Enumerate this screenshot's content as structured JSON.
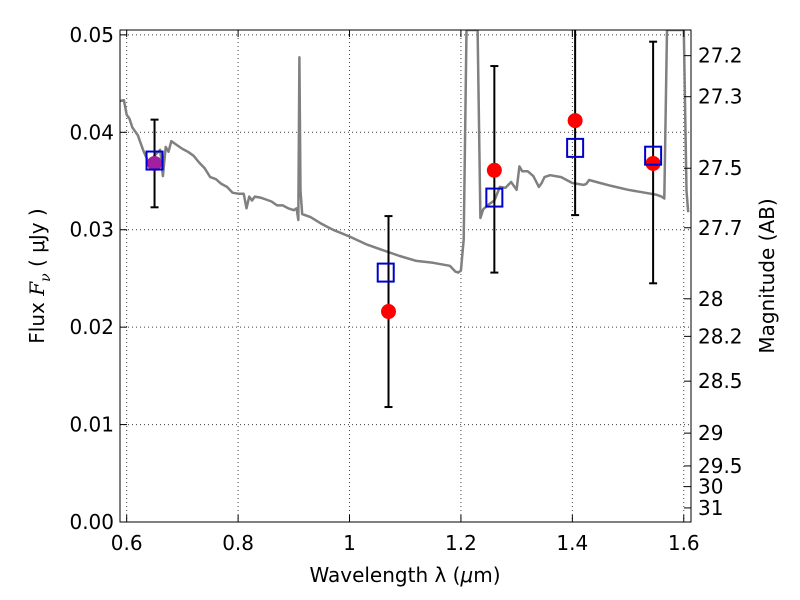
{
  "chart_data": {
    "type": "scatter",
    "xlabel_text": "Wavelength  λ (",
    "xlabel_unit": "μ",
    "xlabel_end": "m)",
    "ylabel_text": "Flux  ",
    "ylabel_math": "F",
    "ylabel_sub": "ν",
    "ylabel_unit": "  ( μJy )",
    "y2label": "Magnitude (AB)",
    "xlim": [
      0.588,
      1.613
    ],
    "ylim": [
      0.0,
      0.0505
    ],
    "x_ticks": [
      0.6,
      0.8,
      1.0,
      1.2,
      1.4,
      1.6
    ],
    "x_tick_labels": [
      "0.6",
      "0.8",
      "1",
      "1.2",
      "1.4",
      "1.6"
    ],
    "y_ticks": [
      0.0,
      0.01,
      0.02,
      0.03,
      0.04,
      0.05
    ],
    "y_tick_labels": [
      "0.00",
      "0.01",
      "0.02",
      "0.03",
      "0.04",
      "0.05"
    ],
    "mag_ticks": [
      27.2,
      27.3,
      27.5,
      27.7,
      28,
      28.2,
      28.5,
      29,
      29.5,
      30,
      31
    ],
    "mag_tick_labels": [
      "27.2",
      "27.3",
      "27.5",
      "27.7",
      "28",
      "28.2",
      "28.5",
      "29",
      "29.5",
      "30",
      "31"
    ],
    "grid": true,
    "colors": {
      "sed": "#808080",
      "observed": "#ff0000",
      "model": "#0000cc",
      "errorbar": "#000000",
      "overlap": "#a020a0"
    },
    "model_spectrum": {
      "x": [
        0.588,
        0.595,
        0.6,
        0.605,
        0.61,
        0.62,
        0.63,
        0.64,
        0.65,
        0.66,
        0.665,
        0.67,
        0.675,
        0.68,
        0.69,
        0.7,
        0.71,
        0.72,
        0.73,
        0.74,
        0.75,
        0.76,
        0.77,
        0.78,
        0.79,
        0.8,
        0.81,
        0.815,
        0.82,
        0.825,
        0.83,
        0.84,
        0.85,
        0.86,
        0.87,
        0.88,
        0.89,
        0.9,
        0.905,
        0.908,
        0.91,
        0.912,
        0.915,
        0.92,
        0.93,
        0.95,
        0.97,
        1.0,
        1.03,
        1.06,
        1.09,
        1.12,
        1.15,
        1.18,
        1.19,
        1.195,
        1.2,
        1.205,
        1.21,
        1.215,
        1.22,
        1.23,
        1.235,
        1.24,
        1.25,
        1.26,
        1.27,
        1.28,
        1.29,
        1.3,
        1.305,
        1.31,
        1.32,
        1.33,
        1.34,
        1.345,
        1.35,
        1.36,
        1.38,
        1.4,
        1.42,
        1.425,
        1.43,
        1.45,
        1.47,
        1.5,
        1.53,
        1.55,
        1.56,
        1.565,
        1.57,
        1.58,
        1.59,
        1.6,
        1.605,
        1.608
      ],
      "y": [
        0.0432,
        0.0433,
        0.0418,
        0.0414,
        0.0405,
        0.0397,
        0.0381,
        0.0368,
        0.0376,
        0.0382,
        0.0355,
        0.0385,
        0.038,
        0.0391,
        0.0387,
        0.0383,
        0.038,
        0.0376,
        0.0369,
        0.0363,
        0.0354,
        0.0352,
        0.0347,
        0.0344,
        0.0338,
        0.0337,
        0.0337,
        0.0322,
        0.0334,
        0.033,
        0.0334,
        0.0333,
        0.0331,
        0.0329,
        0.0325,
        0.0325,
        0.0322,
        0.032,
        0.0322,
        0.031,
        0.0477,
        0.034,
        0.0316,
        0.0315,
        0.0313,
        0.0306,
        0.03,
        0.0293,
        0.0285,
        0.0279,
        0.0273,
        0.0268,
        0.0266,
        0.0263,
        0.0257,
        0.0256,
        0.0258,
        0.029,
        0.0505,
        0.0505,
        0.0505,
        0.0505,
        0.0312,
        0.0321,
        0.0326,
        0.033,
        0.0344,
        0.0343,
        0.0349,
        0.0341,
        0.0365,
        0.036,
        0.036,
        0.0355,
        0.0344,
        0.0348,
        0.0354,
        0.0356,
        0.0354,
        0.0348,
        0.0346,
        0.0347,
        0.0351,
        0.0348,
        0.0345,
        0.0341,
        0.0338,
        0.0336,
        0.0334,
        0.0332,
        0.0505,
        0.0505,
        0.0505,
        0.0505,
        0.034,
        0.0318
      ]
    },
    "observed": {
      "x": [
        0.65,
        1.07,
        1.26,
        1.405,
        1.545
      ],
      "y": [
        0.0368,
        0.0216,
        0.0361,
        0.0412,
        0.0368
      ],
      "err_low": [
        0.0323,
        0.0118,
        0.0256,
        0.0315,
        0.0245
      ],
      "err_high": [
        0.0413,
        0.0314,
        0.0468,
        0.0505,
        0.0493
      ]
    },
    "model_photometry": {
      "x": [
        0.65,
        1.065,
        1.26,
        1.405,
        1.545
      ],
      "y": [
        0.0371,
        0.0256,
        0.0333,
        0.0384,
        0.0376
      ]
    }
  }
}
